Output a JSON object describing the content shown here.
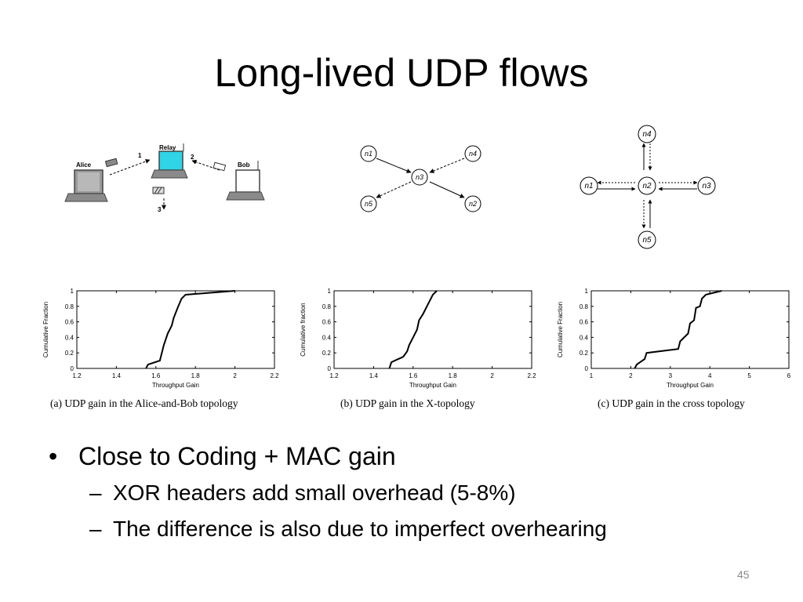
{
  "slide": {
    "title": "Long-lived UDP flows",
    "page_number": "45",
    "bullets": [
      {
        "text": "Close to Coding + MAC gain",
        "sub": [
          "XOR headers add small overhead (5-8%)",
          "The difference is also due to imperfect overhearing"
        ]
      }
    ]
  },
  "diagrams": {
    "alice_bob": {
      "alice": "Alice",
      "relay": "Relay",
      "bob": "Bob",
      "step1": "1",
      "step2": "2",
      "step3": "3"
    },
    "x_topology": {
      "nodes": [
        "n1",
        "n4",
        "n3",
        "n5",
        "n2"
      ]
    },
    "cross_topology": {
      "nodes": [
        "n4",
        "n1",
        "n2",
        "n3",
        "n5"
      ]
    }
  },
  "chart_data": [
    {
      "type": "line",
      "title": "",
      "caption": "(a) UDP gain in the Alice-and-Bob topology",
      "xlabel": "Throughput Gain",
      "ylabel": "Cumulative Fraction",
      "xlim": [
        1.2,
        2.2
      ],
      "ylim": [
        0,
        1
      ],
      "xticks": [
        "1.2",
        "1.4",
        "1.6",
        "1.8",
        "2",
        "2.2"
      ],
      "yticks": [
        "0",
        "0.2",
        "0.4",
        "0.6",
        "0.8",
        "1"
      ],
      "series": [
        {
          "x": [
            1.55,
            1.56,
            1.62,
            1.63,
            1.64,
            1.66,
            1.68,
            1.69,
            1.71,
            1.73,
            1.75,
            1.85,
            2.0
          ],
          "y": [
            0.0,
            0.05,
            0.1,
            0.2,
            0.3,
            0.45,
            0.55,
            0.65,
            0.78,
            0.9,
            0.95,
            0.97,
            1.0
          ]
        }
      ]
    },
    {
      "type": "line",
      "title": "",
      "caption": "(b) UDP gain in the X-topology",
      "xlabel": "Throughput Gain",
      "ylabel": "Cumulative fraction",
      "xlim": [
        1.2,
        2.2
      ],
      "ylim": [
        0,
        1
      ],
      "xticks": [
        "1.2",
        "1.4",
        "1.6",
        "1.8",
        "2",
        "2.2"
      ],
      "yticks": [
        "0",
        "0.2",
        "0.4",
        "0.6",
        "0.8",
        "1"
      ],
      "series": [
        {
          "x": [
            1.48,
            1.49,
            1.55,
            1.57,
            1.58,
            1.6,
            1.62,
            1.63,
            1.65,
            1.66,
            1.68,
            1.7,
            1.72
          ],
          "y": [
            0.0,
            0.08,
            0.15,
            0.22,
            0.3,
            0.4,
            0.5,
            0.62,
            0.7,
            0.75,
            0.85,
            0.95,
            1.0
          ]
        }
      ]
    },
    {
      "type": "line",
      "title": "",
      "caption": "(c) UDP gain in the cross topology",
      "xlabel": "Throughput Gain",
      "ylabel": "Cumulative Fraction",
      "xlim": [
        1,
        6
      ],
      "ylim": [
        0,
        1
      ],
      "xticks": [
        "1",
        "2",
        "3",
        "4",
        "5",
        "6"
      ],
      "yticks": [
        "0",
        "0.2",
        "0.4",
        "0.6",
        "0.8",
        "1"
      ],
      "series": [
        {
          "x": [
            2.1,
            2.15,
            2.35,
            2.4,
            3.2,
            3.25,
            3.45,
            3.5,
            3.6,
            3.65,
            3.75,
            3.8,
            3.9,
            4.3
          ],
          "y": [
            0.0,
            0.05,
            0.12,
            0.2,
            0.25,
            0.35,
            0.45,
            0.58,
            0.62,
            0.78,
            0.8,
            0.9,
            0.95,
            1.0
          ]
        }
      ]
    }
  ]
}
